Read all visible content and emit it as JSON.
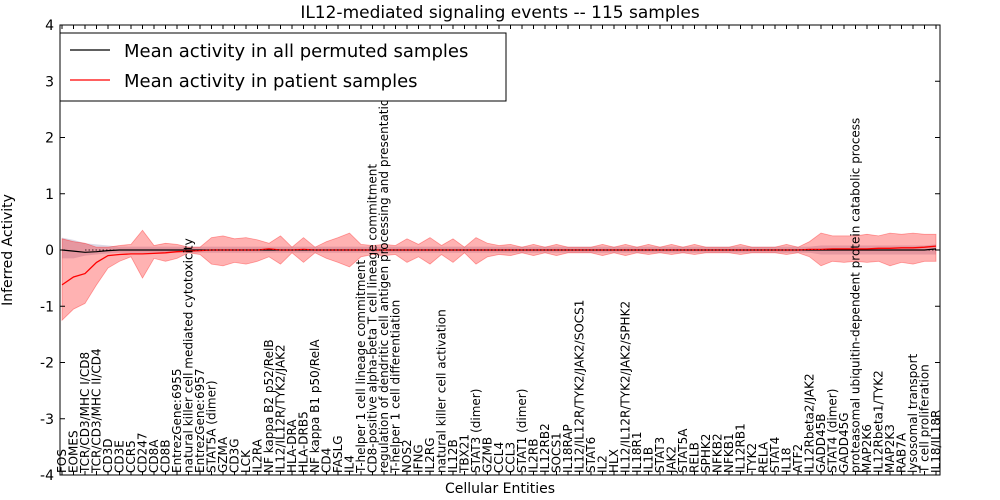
{
  "chart_data": {
    "type": "line",
    "title": "IL12-mediated signaling events -- 115 samples",
    "xlabel": "Cellular Entities",
    "ylabel": "Inferred Activity",
    "ylim": [
      -4,
      4
    ],
    "yticks": [
      "-4",
      "-3",
      "-2",
      "-1",
      "0",
      "1",
      "2",
      "3",
      "4"
    ],
    "legend": {
      "position": "top-left",
      "entries": [
        {
          "label": "Mean activity in all permuted samples",
          "color": "#000000"
        },
        {
          "label": "Mean activity in patient samples",
          "color": "#ff0000"
        }
      ]
    },
    "categories": [
      "FOS",
      "EOMES",
      "TCR/CD3/MHC I/CD8",
      "TCR/CD3/MHC II/CD4",
      "CD3D",
      "CD3E",
      "CCR5",
      "CD247",
      "CD8A",
      "CD8B",
      "EntrezGene:6955",
      "natural killer cell mediated cytotoxicity",
      "EntrezGene:6957",
      "STAT5A (dimer)",
      "GZMA",
      "CD3G",
      "LCK",
      "IL2RA",
      "NF kappa B2 p52/RelB",
      "IL12/IL12R/TYK2/JAK2",
      "HLA-DRA",
      "HLA-DRB5",
      "NF kappa B1 p50/RelA",
      "CD4",
      "FASLG",
      "IL4",
      "T-helper 1 cell lineage commitment",
      "CD8-positive alpha-beta T cell lineage commitment",
      "regulation of dendritic cell antigen processing and presentation",
      "T-helper 1 cell differentiation",
      "NOS2",
      "IFNG",
      "IL2RG",
      "natural killer cell activation",
      "IL12B",
      "TBX21",
      "STAT3 (dimer)",
      "GZMB",
      "CCL4",
      "CCL3",
      "STAT1 (dimer)",
      "IL2RB",
      "IL12RB2",
      "SOCS1",
      "IL18RAP",
      "IL12/IL12R/TYK2/JAK2/SOCS1",
      "STAT6",
      "IL2",
      "HLX",
      "IL12/IL12R/TYK2/JAK2/SPHK2",
      "IL18R1",
      "IL1B",
      "STAT3",
      "JAK2",
      "STAT5A",
      "RELB",
      "SPHK2",
      "NFKB2",
      "NFKB1",
      "IL12RB1",
      "TYK2",
      "RELA",
      "STAT4",
      "IL18",
      "ATF2",
      "IL12Rbeta2/JAK2",
      "GADD45B",
      "STAT4 (dimer)",
      "GADD45G",
      "proteasomal ubiquitin-dependent protein catabolic process",
      "MAP2K6",
      "IL12Rbeta1/TYK2",
      "MAP2K3",
      "RAB7A",
      "lysosomal transport",
      "T cell proliferation",
      "IL18/IL18R"
    ],
    "series": [
      {
        "name": "Mean activity in all permuted samples",
        "color": "#000000",
        "values": [
          0,
          -0.02,
          -0.04,
          -0.03,
          -0.01,
          0,
          0,
          0,
          0,
          0,
          0,
          0,
          0,
          0,
          0,
          0,
          0,
          0,
          0,
          0,
          0,
          0,
          0,
          0,
          0,
          0,
          0,
          0,
          0,
          0,
          0,
          0,
          0,
          0,
          0,
          0,
          0,
          0,
          0,
          0,
          0,
          0,
          0,
          0,
          0,
          0,
          0,
          0,
          0,
          0,
          0,
          0,
          0,
          0,
          0,
          0,
          0,
          0,
          0,
          0,
          0,
          0,
          0,
          0,
          0,
          0,
          0,
          0,
          0,
          0,
          0,
          0,
          0,
          0,
          0,
          0,
          0.02
        ]
      },
      {
        "name": "Mean activity in patient samples",
        "color": "#ff0000",
        "values": [
          -0.62,
          -0.48,
          -0.42,
          -0.22,
          -0.1,
          -0.08,
          -0.07,
          -0.07,
          -0.06,
          -0.05,
          -0.03,
          -0.02,
          -0.01,
          0,
          0,
          0,
          0,
          0,
          0.02,
          0,
          0,
          0.01,
          0,
          0,
          0,
          0,
          0,
          0,
          0,
          0,
          0,
          0,
          0,
          0,
          0,
          0,
          0,
          0,
          0,
          0,
          0,
          0,
          0,
          0,
          0,
          0,
          0,
          0,
          0,
          0,
          0,
          0,
          0,
          0,
          0,
          0,
          0,
          0,
          0,
          0,
          0,
          0,
          0,
          0,
          0,
          0.01,
          0.01,
          0.02,
          0.02,
          0.02,
          0.02,
          0.03,
          0.03,
          0.04,
          0.04,
          0.05,
          0.07
        ],
        "band_low": [
          -1.25,
          -1.05,
          -0.95,
          -0.62,
          -0.32,
          -0.2,
          -0.12,
          -0.5,
          -0.15,
          -0.2,
          -0.15,
          -0.05,
          -0.08,
          -0.25,
          -0.28,
          -0.22,
          -0.25,
          -0.2,
          -0.12,
          -0.25,
          -0.05,
          -0.22,
          -0.05,
          -0.15,
          -0.22,
          -0.3,
          -0.12,
          -0.08,
          -0.1,
          -0.08,
          -0.22,
          -0.12,
          -0.25,
          -0.08,
          -0.22,
          -0.05,
          -0.25,
          -0.12,
          -0.08,
          -0.1,
          -0.05,
          -0.1,
          -0.05,
          -0.1,
          -0.05,
          -0.05,
          -0.05,
          -0.1,
          -0.05,
          -0.1,
          -0.05,
          -0.08,
          -0.05,
          -0.08,
          -0.05,
          -0.08,
          -0.05,
          -0.05,
          -0.05,
          -0.08,
          -0.05,
          -0.05,
          -0.05,
          -0.08,
          -0.05,
          -0.12,
          -0.28,
          -0.2,
          -0.22,
          -0.2,
          -0.22,
          -0.2,
          -0.28,
          -0.22,
          -0.25,
          -0.2,
          -0.2
        ],
        "band_high": [
          0.2,
          0.15,
          0.12,
          0.05,
          0.05,
          0.08,
          0.1,
          0.35,
          0.08,
          0.12,
          0.1,
          0.05,
          0.05,
          0.22,
          0.25,
          0.2,
          0.22,
          0.18,
          0.12,
          0.25,
          0.05,
          0.22,
          0.05,
          0.15,
          0.22,
          0.3,
          0.1,
          0.08,
          0.1,
          0.08,
          0.2,
          0.1,
          0.22,
          0.08,
          0.2,
          0.05,
          0.22,
          0.12,
          0.08,
          0.1,
          0.05,
          0.1,
          0.05,
          0.1,
          0.05,
          0.05,
          0.05,
          0.1,
          0.05,
          0.1,
          0.05,
          0.1,
          0.05,
          0.1,
          0.05,
          0.1,
          0.05,
          0.05,
          0.05,
          0.1,
          0.05,
          0.05,
          0.05,
          0.1,
          0.05,
          0.15,
          0.3,
          0.25,
          0.25,
          0.25,
          0.28,
          0.25,
          0.3,
          0.28,
          0.3,
          0.28,
          0.28
        ]
      }
    ],
    "permuted_band": {
      "low": [
        -0.15,
        -0.15,
        -0.1,
        -0.08,
        -0.06,
        -0.05,
        -0.05,
        -0.05,
        -0.05,
        -0.05,
        -0.05,
        -0.05,
        -0.05,
        -0.05,
        -0.05,
        -0.05,
        -0.05,
        -0.05,
        -0.05,
        -0.05,
        -0.05,
        -0.05,
        -0.05,
        -0.05,
        -0.05,
        -0.05,
        -0.05,
        -0.05,
        -0.05,
        -0.05,
        -0.05,
        -0.05,
        -0.05,
        -0.05,
        -0.05,
        -0.05,
        -0.05,
        -0.05,
        -0.05,
        -0.05,
        -0.05,
        -0.05,
        -0.05,
        -0.05,
        -0.05,
        -0.05,
        -0.05,
        -0.05,
        -0.05,
        -0.05,
        -0.05,
        -0.05,
        -0.05,
        -0.05,
        -0.05,
        -0.05,
        -0.05,
        -0.05,
        -0.05,
        -0.05,
        -0.05,
        -0.05,
        -0.05,
        -0.05,
        -0.05,
        -0.05,
        -0.08,
        -0.08,
        -0.08,
        -0.08,
        -0.08,
        -0.08,
        -0.08,
        -0.08,
        -0.08,
        -0.08,
        -0.08
      ],
      "high": [
        0.22,
        0.18,
        0.12,
        0.1,
        0.08,
        0.06,
        0.06,
        0.06,
        0.06,
        0.06,
        0.06,
        0.06,
        0.06,
        0.06,
        0.06,
        0.06,
        0.06,
        0.06,
        0.06,
        0.06,
        0.06,
        0.06,
        0.06,
        0.06,
        0.06,
        0.06,
        0.06,
        0.06,
        0.06,
        0.06,
        0.06,
        0.06,
        0.06,
        0.06,
        0.06,
        0.06,
        0.06,
        0.06,
        0.06,
        0.06,
        0.06,
        0.06,
        0.06,
        0.06,
        0.06,
        0.06,
        0.06,
        0.06,
        0.06,
        0.06,
        0.06,
        0.06,
        0.06,
        0.06,
        0.06,
        0.06,
        0.06,
        0.06,
        0.06,
        0.06,
        0.06,
        0.06,
        0.06,
        0.06,
        0.06,
        0.06,
        0.08,
        0.08,
        0.08,
        0.08,
        0.08,
        0.08,
        0.08,
        0.08,
        0.08,
        0.08,
        0.1
      ]
    },
    "grid": false
  }
}
